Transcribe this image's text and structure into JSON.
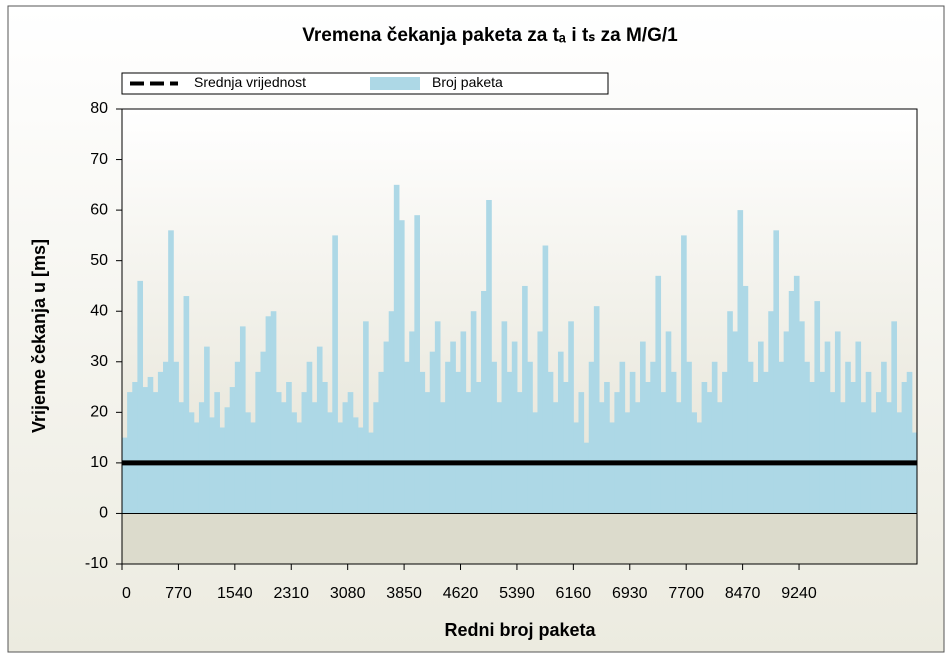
{
  "chart_data": {
    "type": "bar",
    "title": "Vremena čekanja paketa za tₐ i tₛ za M/G/1",
    "xlabel": "Redni broj paketa",
    "ylabel": "Vrijeme čekanja u [ms]",
    "xlim": [
      0,
      10850
    ],
    "ylim": [
      -10,
      80
    ],
    "xticks": [
      0,
      770,
      1540,
      2310,
      3080,
      3850,
      4620,
      5390,
      6160,
      6930,
      7700,
      8470,
      9240
    ],
    "yticks": [
      -10,
      0,
      10,
      20,
      30,
      40,
      50,
      60,
      70,
      80
    ],
    "legend": "top",
    "reference_line": {
      "name": "Srednja vrijednost",
      "value": 10,
      "color": "#000000"
    },
    "x": [
      0,
      70,
      140,
      210,
      280,
      350,
      420,
      490,
      560,
      630,
      700,
      770,
      840,
      910,
      980,
      1050,
      1120,
      1190,
      1260,
      1330,
      1400,
      1470,
      1540,
      1610,
      1680,
      1750,
      1820,
      1890,
      1960,
      2030,
      2100,
      2170,
      2240,
      2310,
      2380,
      2450,
      2520,
      2590,
      2660,
      2730,
      2800,
      2870,
      2940,
      3010,
      3080,
      3150,
      3220,
      3290,
      3360,
      3430,
      3500,
      3570,
      3640,
      3710,
      3780,
      3850,
      3920,
      3990,
      4060,
      4130,
      4200,
      4270,
      4340,
      4410,
      4480,
      4550,
      4620,
      4690,
      4760,
      4830,
      4900,
      4970,
      5040,
      5110,
      5180,
      5250,
      5320,
      5390,
      5460,
      5530,
      5600,
      5670,
      5740,
      5810,
      5880,
      5950,
      6020,
      6090,
      6160,
      6230,
      6300,
      6370,
      6440,
      6510,
      6580,
      6650,
      6720,
      6790,
      6860,
      6930,
      7000,
      7070,
      7140,
      7210,
      7280,
      7350,
      7420,
      7490,
      7560,
      7630,
      7700,
      7770,
      7840,
      7910,
      7980,
      8050,
      8120,
      8190,
      8260,
      8330,
      8400,
      8470,
      8540,
      8610,
      8680,
      8750,
      8820,
      8890,
      8960,
      9030,
      9100,
      9170,
      9240,
      9310,
      9380,
      9450,
      9520,
      9590,
      9660,
      9730,
      9800,
      9870,
      9940,
      10010,
      10080,
      10150,
      10220,
      10290,
      10360,
      10430,
      10500,
      10570,
      10640,
      10710,
      10780
    ],
    "series": [
      {
        "name": "Broj paketa",
        "color": "#add8e6",
        "values": [
          15,
          24,
          26,
          46,
          25,
          27,
          24,
          28,
          30,
          56,
          30,
          22,
          43,
          20,
          18,
          22,
          33,
          19,
          24,
          17,
          21,
          25,
          30,
          37,
          20,
          18,
          28,
          32,
          39,
          40,
          24,
          22,
          26,
          20,
          18,
          24,
          30,
          22,
          33,
          26,
          20,
          55,
          18,
          22,
          24,
          19,
          17,
          38,
          16,
          22,
          28,
          34,
          40,
          65,
          58,
          30,
          36,
          59,
          28,
          24,
          32,
          38,
          22,
          30,
          34,
          28,
          36,
          24,
          40,
          26,
          44,
          62,
          30,
          22,
          38,
          28,
          34,
          24,
          45,
          30,
          20,
          36,
          53,
          28,
          22,
          32,
          26,
          38,
          18,
          24,
          14,
          30,
          41,
          22,
          26,
          18,
          24,
          30,
          20,
          28,
          22,
          34,
          26,
          30,
          47,
          24,
          36,
          28,
          22,
          55,
          30,
          20,
          18,
          26,
          24,
          30,
          22,
          28,
          40,
          36,
          60,
          45,
          30,
          26,
          34,
          28,
          40,
          56,
          30,
          36,
          44,
          47,
          38,
          30,
          26,
          42,
          28,
          34,
          24,
          36,
          22,
          30,
          26,
          34,
          22,
          28,
          20,
          24,
          30,
          22,
          38,
          20,
          26,
          28,
          16
        ]
      }
    ]
  }
}
